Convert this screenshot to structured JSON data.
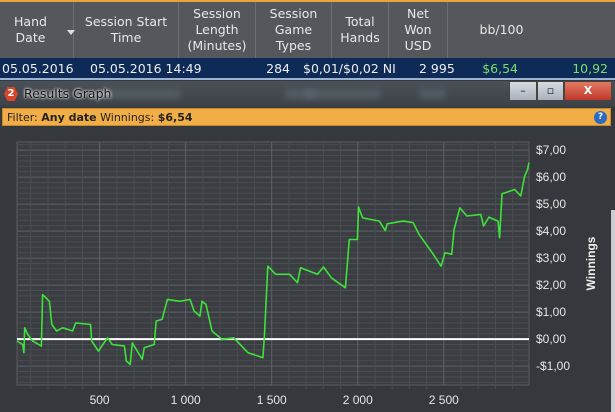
{
  "table": {
    "columns": [
      "Hand\nDate",
      "Session Start\nTime",
      "Session\nLength\n(Minutes)",
      "Session\nGame\nTypes",
      "Total\nHands",
      "Net\nWon\nUSD",
      "bb/100"
    ],
    "rows": [
      {
        "hand_date": "05.05.2016",
        "start_time": "05.05.2016 14:49",
        "length": "284",
        "game_types": "$0,01/$0,02 NI",
        "total_hands": "2 995",
        "net_won": "$6,54",
        "bb100": "10,92"
      }
    ],
    "positive_color": "#7ddc6e"
  },
  "window": {
    "icon_label": "2",
    "title": "Results Graph",
    "minimize": "–",
    "maximize": "▫",
    "close": "X"
  },
  "filter": {
    "label": "Filter:",
    "date": "Any date",
    "winnings_label": "Winnings:",
    "winnings": "$6,54",
    "help": "?"
  },
  "chart_data": {
    "type": "line",
    "ylabel": "Winnings",
    "xlabel": "",
    "xlim": [
      20,
      2995
    ],
    "ylim": [
      -1.7,
      7.3
    ],
    "x_ticks": [
      500,
      1000,
      1500,
      2000,
      2500
    ],
    "x_tick_labels": [
      "500",
      "1 000",
      "1 500",
      "2 000",
      "2 500"
    ],
    "y_ticks": [
      -1,
      0,
      1,
      2,
      3,
      4,
      5,
      6,
      7
    ],
    "y_tick_labels": [
      "-$1,00",
      "$0,00",
      "$1,00",
      "$2,00",
      "$3,00",
      "$4,00",
      "$5,00",
      "$6,00",
      "$7,00"
    ],
    "grid": true,
    "line_color": "#3de23a",
    "zero_line_color": "#ffffff",
    "series": [
      {
        "x": [
          20,
          53,
          60,
          65,
          83,
          111,
          162,
          169,
          208,
          222,
          250,
          285,
          343,
          361,
          447,
          454,
          493,
          546,
          574,
          644,
          655,
          678,
          690,
          748,
          759,
          817,
          829,
          863,
          894,
          968,
          1025,
          1049,
          1083,
          1095,
          1118,
          1153,
          1211,
          1280,
          1361,
          1449,
          1458,
          1477,
          1523,
          1604,
          1650,
          1667,
          1766,
          1801,
          1847,
          1928,
          1951,
          1998,
          2005,
          2028,
          2125,
          2160,
          2171,
          2264,
          2322,
          2356,
          2426,
          2484,
          2507,
          2546,
          2560,
          2593,
          2634,
          2715,
          2731,
          2762,
          2815,
          2824,
          2838,
          2912,
          2947,
          2970,
          2985,
          2995
        ],
        "y": [
          -0.07,
          -0.2,
          -0.5,
          0.42,
          0.17,
          -0.07,
          -0.26,
          1.65,
          1.4,
          0.54,
          0.3,
          0.42,
          0.3,
          0.6,
          0.54,
          -0.07,
          -0.44,
          0.05,
          -0.2,
          -0.26,
          -0.81,
          -0.94,
          -0.14,
          -0.75,
          -0.32,
          -0.2,
          0.67,
          0.73,
          1.47,
          1.4,
          1.47,
          1.04,
          0.85,
          1.4,
          1.28,
          0.3,
          -0.01,
          0.05,
          -0.5,
          -0.69,
          0.17,
          2.7,
          2.4,
          2.4,
          2.09,
          2.64,
          2.4,
          2.67,
          2.27,
          1.9,
          3.69,
          3.69,
          4.89,
          4.49,
          4.37,
          4.02,
          4.27,
          4.37,
          4.31,
          3.88,
          3.26,
          2.7,
          3.2,
          3.14,
          4.06,
          4.86,
          4.56,
          4.62,
          4.19,
          4.52,
          4.37,
          3.75,
          5.38,
          5.54,
          5.3,
          6.04,
          6.25,
          6.54
        ]
      }
    ]
  }
}
